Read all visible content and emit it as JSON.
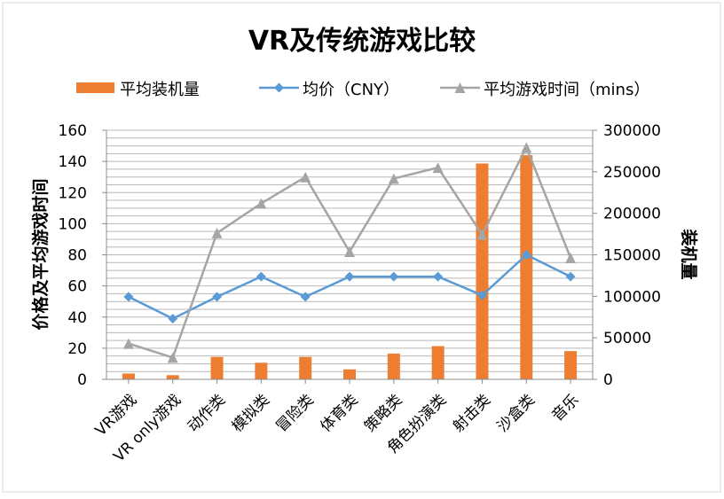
{
  "chart_data": {
    "type": "bar",
    "title": "VR及传统游戏比较",
    "categories": [
      "VR游戏",
      "VR only游戏",
      "动作类",
      "模拟类",
      "冒险类",
      "体育类",
      "策略类",
      "角色扮演类",
      "射击类",
      "沙盒类",
      "音乐"
    ],
    "ylabel": "价格及平均游戏时间",
    "y2label": "装机量",
    "ylim": [
      0,
      160
    ],
    "y2lim": [
      0,
      300000
    ],
    "yticks": [
      "0",
      "20",
      "40",
      "60",
      "80",
      "100",
      "120",
      "140",
      "160"
    ],
    "y2ticks": [
      "0",
      "50000",
      "100000",
      "150000",
      "200000",
      "250000",
      "300000"
    ],
    "grid": true,
    "legend_position": "top",
    "series": [
      {
        "name": "平均装机量",
        "type": "bar",
        "axis": "right",
        "color": "#ED7D31",
        "values": [
          7000,
          5000,
          27000,
          20000,
          27000,
          12000,
          31000,
          40000,
          260000,
          270000,
          34000
        ]
      },
      {
        "name": "均价（CNY）",
        "type": "line",
        "axis": "left",
        "color": "#5B9BD5",
        "marker": "diamond",
        "values": [
          53,
          39,
          53,
          66,
          53,
          66,
          66,
          66,
          54,
          80,
          66
        ]
      },
      {
        "name": "平均游戏时间（mins）",
        "type": "line",
        "axis": "left",
        "color": "#A5A5A5",
        "marker": "triangle",
        "values": [
          23,
          14,
          94,
          113,
          130,
          82,
          129,
          136,
          93,
          149,
          78
        ]
      }
    ]
  }
}
